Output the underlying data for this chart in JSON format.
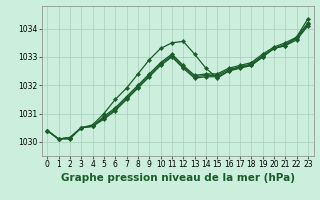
{
  "background_color": "#cceedd",
  "grid_color": "#aaccbb",
  "line_color": "#1a5c2a",
  "xlabel": "Graphe pression niveau de la mer (hPa)",
  "ylim": [
    1029.5,
    1034.8
  ],
  "xlim": [
    -0.5,
    23.5
  ],
  "yticks": [
    1030,
    1031,
    1032,
    1033,
    1034
  ],
  "xtick_labels": [
    "0",
    "1",
    "2",
    "3",
    "4",
    "5",
    "6",
    "7",
    "8",
    "9",
    "10",
    "11",
    "12",
    "13",
    "14",
    "15",
    "16",
    "17",
    "18",
    "19",
    "20",
    "21",
    "22",
    "23"
  ],
  "series": [
    [
      1030.4,
      1030.1,
      1030.1,
      1030.5,
      1030.6,
      1031.0,
      1031.5,
      1031.9,
      1032.4,
      1032.9,
      1033.3,
      1033.5,
      1033.55,
      1033.1,
      1032.6,
      1032.25,
      1032.5,
      1032.6,
      1032.7,
      1033.0,
      1033.3,
      1033.4,
      1033.7,
      1034.35
    ],
    [
      1030.4,
      1030.1,
      1030.15,
      1030.5,
      1030.55,
      1030.8,
      1031.1,
      1031.5,
      1031.9,
      1032.3,
      1032.7,
      1033.0,
      1032.6,
      1032.25,
      1032.3,
      1032.3,
      1032.5,
      1032.65,
      1032.7,
      1033.0,
      1033.3,
      1033.4,
      1033.6,
      1034.1
    ],
    [
      1030.4,
      1030.1,
      1030.15,
      1030.5,
      1030.55,
      1030.85,
      1031.15,
      1031.55,
      1031.95,
      1032.35,
      1032.75,
      1033.05,
      1032.65,
      1032.3,
      1032.35,
      1032.35,
      1032.55,
      1032.65,
      1032.75,
      1033.05,
      1033.3,
      1033.45,
      1033.65,
      1034.15
    ],
    [
      1030.4,
      1030.1,
      1030.15,
      1030.5,
      1030.55,
      1030.9,
      1031.2,
      1031.6,
      1032.0,
      1032.4,
      1032.8,
      1033.1,
      1032.7,
      1032.35,
      1032.4,
      1032.4,
      1032.6,
      1032.7,
      1032.8,
      1033.1,
      1033.35,
      1033.5,
      1033.7,
      1034.2
    ]
  ],
  "marker": "D",
  "markersize": 2.2,
  "linewidth": 0.9,
  "xlabel_fontsize": 7.5,
  "tick_fontsize": 5.5
}
